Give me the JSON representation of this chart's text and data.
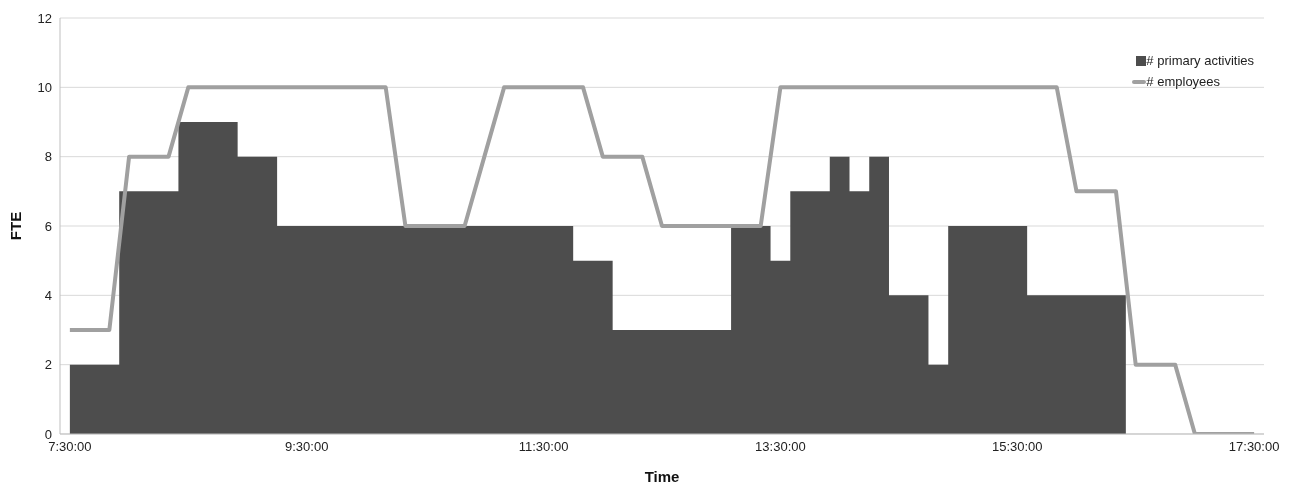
{
  "chart_data": {
    "type": "area",
    "xlabel": "Time",
    "ylabel": "FTE",
    "categories": [
      "7:30:00",
      null,
      null,
      null,
      null,
      null,
      null,
      null,
      null,
      null,
      null,
      null,
      "9:30:00",
      null,
      null,
      null,
      null,
      null,
      null,
      null,
      null,
      null,
      null,
      null,
      "11:30:00",
      null,
      null,
      null,
      null,
      null,
      null,
      null,
      null,
      null,
      null,
      null,
      "13:30:00",
      null,
      null,
      null,
      null,
      null,
      null,
      null,
      null,
      null,
      null,
      null,
      "15:30:00",
      null,
      null,
      null,
      null,
      null,
      null,
      null,
      null,
      null,
      null,
      null,
      "17:30:00"
    ],
    "series": [
      {
        "name": "# primary activities",
        "color": "#4d4d4d",
        "values": [
          2,
          2,
          2,
          7,
          7,
          7,
          9,
          9,
          9,
          8,
          8,
          6,
          6,
          6,
          6,
          6,
          6,
          6,
          6,
          6,
          6,
          6,
          6,
          6,
          6,
          6,
          5,
          5,
          3,
          3,
          3,
          3,
          3,
          3,
          6,
          6,
          5,
          7,
          7,
          8,
          7,
          8,
          4,
          4,
          2,
          6,
          6,
          6,
          6,
          4,
          4,
          4,
          4,
          4,
          0,
          0,
          0,
          0,
          0,
          0,
          0
        ]
      },
      {
        "name": "# employees",
        "type": "line",
        "color": "#a0a0a0",
        "values": [
          3,
          3,
          3,
          8,
          8,
          8,
          10,
          10,
          10,
          10,
          10,
          10,
          10,
          10,
          10,
          10,
          10,
          6,
          6,
          6,
          6,
          8,
          10,
          10,
          10,
          10,
          10,
          8,
          8,
          8,
          6,
          6,
          6,
          6,
          6,
          6,
          10,
          10,
          10,
          10,
          10,
          10,
          10,
          10,
          10,
          10,
          10,
          10,
          10,
          10,
          10,
          7,
          7,
          7,
          2,
          2,
          2,
          0,
          0,
          0,
          0
        ]
      }
    ],
    "ylim": [
      0,
      12
    ],
    "yticks": [
      0,
      2,
      4,
      6,
      8,
      10,
      12
    ],
    "grid": "y",
    "legend": "top right",
    "marker": "none",
    "line_style": "solid"
  }
}
